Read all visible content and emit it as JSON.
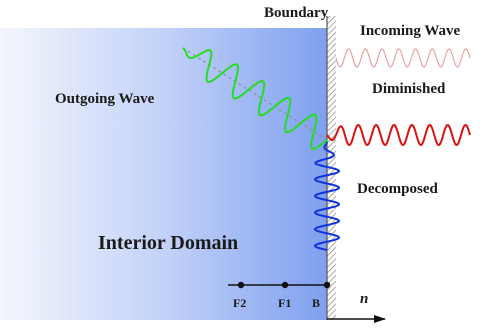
{
  "labels": {
    "boundary": "Boundary",
    "incoming_wave": "Incoming Wave",
    "diminished": "Diminished",
    "outgoing_wave": "Outgoing Wave",
    "decomposed": "Decomposed",
    "interior_domain": "Interior Domain",
    "f2": "F2",
    "f1": "F1",
    "b": "B",
    "n": "n"
  },
  "colors": {
    "domain_light": "#f4f6fc",
    "domain_dark": "#7fa0f0",
    "outgoing_wave": "#22dd22",
    "incoming_wave": "#dd1111",
    "diminished_wave": "#f0a0a0",
    "decomposed_wave": "#1133dd",
    "boundary_wall": "#999999"
  }
}
